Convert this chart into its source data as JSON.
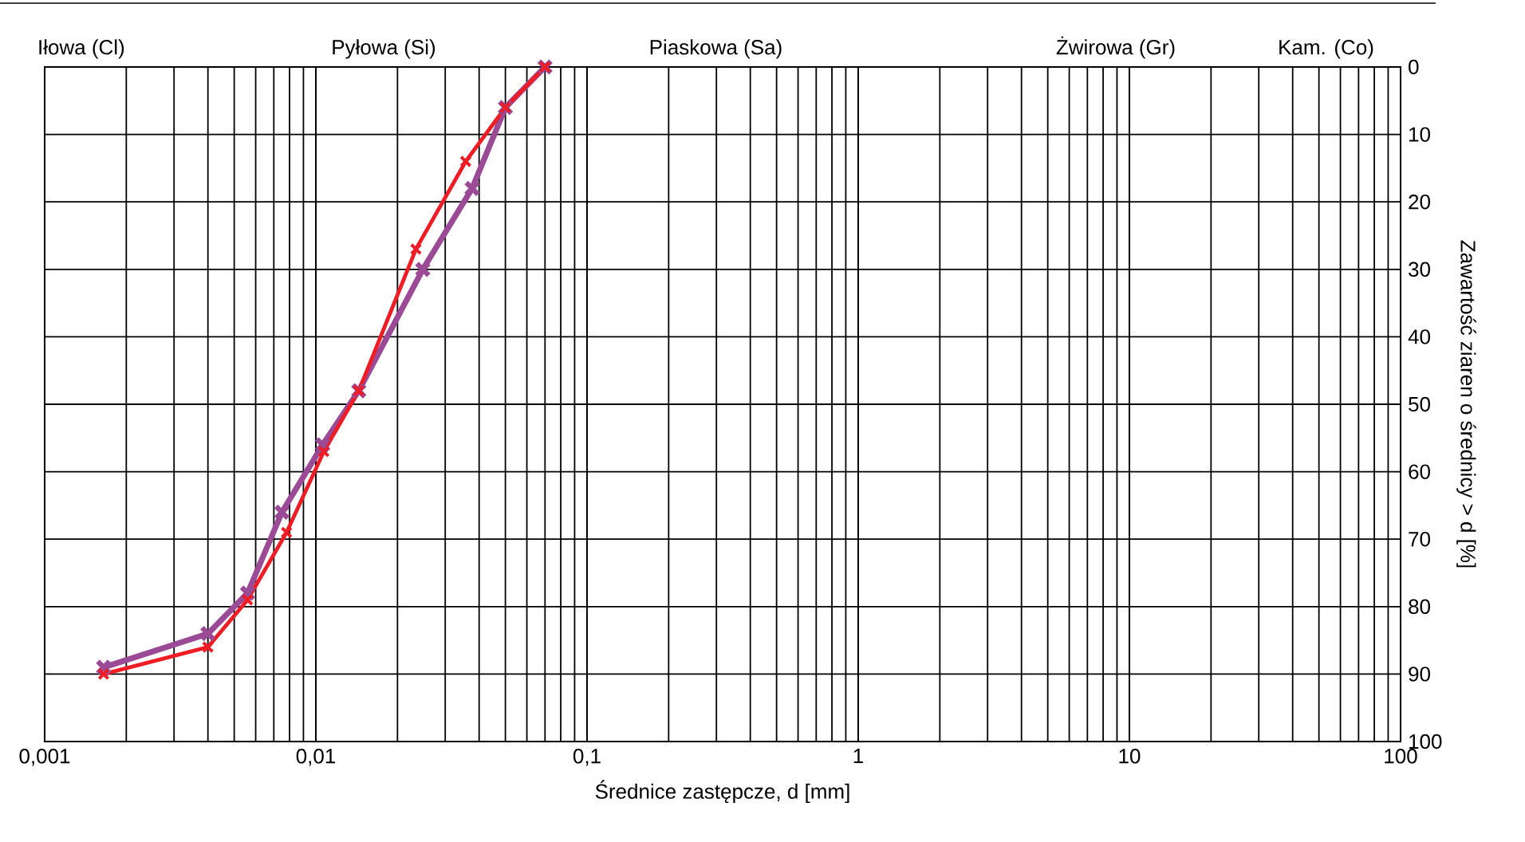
{
  "chart_data": {
    "type": "line",
    "xlabel": "Średnice zastępcze, d [mm]",
    "ylabel": "Zawartość ziaren o średnicy > d [%]",
    "log": "x",
    "grid": true,
    "marker": "cross",
    "line_style": "solid",
    "xlim": [
      0.001,
      100
    ],
    "ylim": [
      100,
      0
    ],
    "xticks": [
      {
        "value": 0.001,
        "label": "0,001"
      },
      {
        "value": 0.01,
        "label": "0,01"
      },
      {
        "value": 0.1,
        "label": "0,1"
      },
      1,
      10,
      100
    ],
    "yticks": [
      0,
      10,
      20,
      30,
      40,
      50,
      60,
      70,
      80,
      90,
      100
    ],
    "annotations": [
      "Iłowa (Cl)",
      "Pyłowa (Si)",
      "Piaskowa (Sa)",
      "Żwirowa (Gr)",
      "Kam. (Co)"
    ],
    "series": [
      {
        "color": "#9b4a96",
        "x": [
          0.00165,
          0.004,
          0.0056,
          0.0075,
          0.0106,
          0.0144,
          0.0248,
          0.0377,
          0.05,
          0.07
        ],
        "values": [
          89,
          84,
          78,
          66,
          56,
          48,
          30,
          18,
          6,
          0
        ]
      },
      {
        "color": "#ee1c25",
        "x": [
          0.00165,
          0.004,
          0.0056,
          0.0078,
          0.0107,
          0.0144,
          0.0234,
          0.0357,
          0.05,
          0.07
        ],
        "values": [
          90,
          86,
          79,
          69,
          57,
          48,
          27,
          14,
          6,
          0
        ]
      }
    ]
  }
}
